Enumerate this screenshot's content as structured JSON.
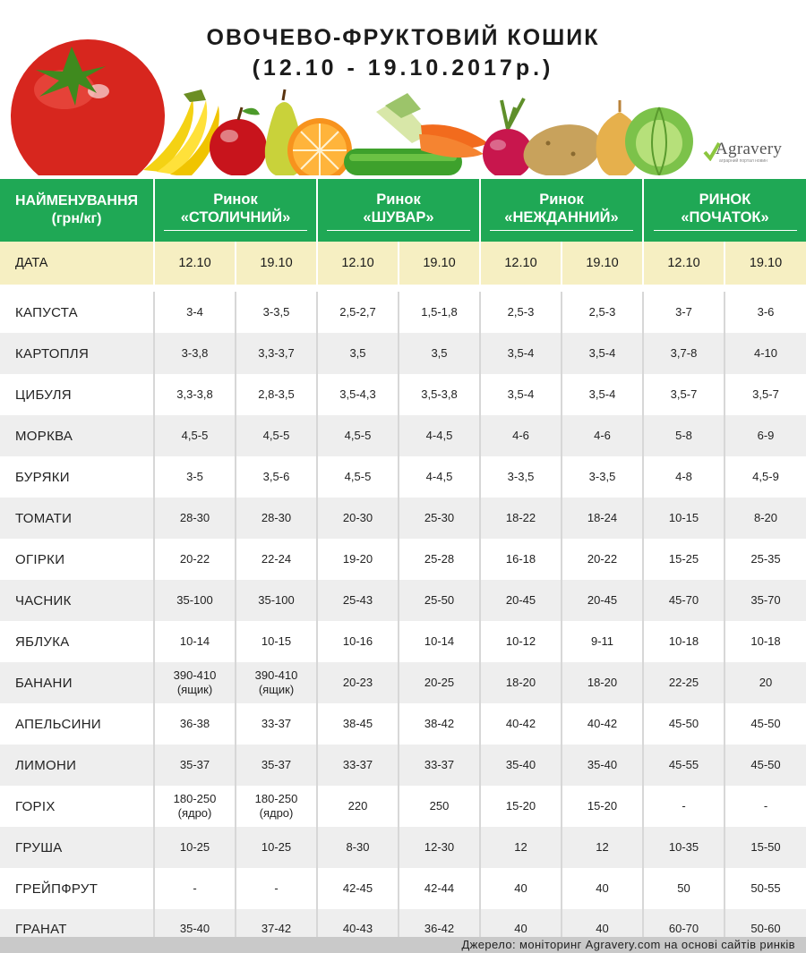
{
  "title_line1": "ОВОЧЕВО-ФРУКТОВИЙ КОШИК",
  "title_line2": "(12.10 - 19.10.2017р.)",
  "logo_text": "Agravery",
  "logo_subtitle": "аграрний портал новин",
  "colors": {
    "green": "#1fa855",
    "date_row": "#f6efc2",
    "stripe": "#eeeeee"
  },
  "header": {
    "name_line1": "НАЙМЕНУВАННЯ",
    "name_line2": "(грн/кг)",
    "markets": [
      {
        "line1": "Ринок",
        "line2": "«СТОЛИЧНИЙ»"
      },
      {
        "line1": "Ринок",
        "line2": "«ШУВАР»"
      },
      {
        "line1": "Ринок",
        "line2": "«НЕЖДАННИЙ»"
      },
      {
        "line1": "РИНОК",
        "line2": "«ПОЧАТОК»"
      }
    ]
  },
  "date_row": {
    "label": "ДАТА",
    "dates": [
      "12.10",
      "19.10",
      "12.10",
      "19.10",
      "12.10",
      "19.10",
      "12.10",
      "19.10"
    ]
  },
  "rows": [
    {
      "name": "КАПУСТА",
      "values": [
        "3-4",
        "3-3,5",
        "2,5-2,7",
        "1,5-1,8",
        "2,5-3",
        "2,5-3",
        "3-7",
        "3-6"
      ]
    },
    {
      "name": "КАРТОПЛЯ",
      "values": [
        "3-3,8",
        "3,3-3,7",
        "3,5",
        "3,5",
        "3,5-4",
        "3,5-4",
        "3,7-8",
        "4-10"
      ]
    },
    {
      "name": "ЦИБУЛЯ",
      "values": [
        "3,3-3,8",
        "2,8-3,5",
        "3,5-4,3",
        "3,5-3,8",
        "3,5-4",
        "3,5-4",
        "3,5-7",
        "3,5-7"
      ]
    },
    {
      "name": "МОРКВА",
      "values": [
        "4,5-5",
        "4,5-5",
        "4,5-5",
        "4-4,5",
        "4-6",
        "4-6",
        "5-8",
        "6-9"
      ]
    },
    {
      "name": "БУРЯКИ",
      "values": [
        "3-5",
        "3,5-6",
        "4,5-5",
        "4-4,5",
        "3-3,5",
        "3-3,5",
        "4-8",
        "4,5-9"
      ]
    },
    {
      "name": "ТОМАТИ",
      "values": [
        "28-30",
        "28-30",
        "20-30",
        "25-30",
        "18-22",
        "18-24",
        "10-15",
        "8-20"
      ]
    },
    {
      "name": "ОГІРКИ",
      "values": [
        "20-22",
        "22-24",
        "19-20",
        "25-28",
        "16-18",
        "20-22",
        "15-25",
        "25-35"
      ]
    },
    {
      "name": "ЧАСНИК",
      "values": [
        "35-100",
        "35-100",
        "25-43",
        "25-50",
        "20-45",
        "20-45",
        "45-70",
        "35-70"
      ]
    },
    {
      "name": "ЯБЛУКА",
      "values": [
        "10-14",
        "10-15",
        "10-16",
        "10-14",
        "10-12",
        "9-11",
        "10-18",
        "10-18"
      ]
    },
    {
      "name": "БАНАНИ",
      "values": [
        "390-410|(ящик)",
        "390-410|(ящик)",
        "20-23",
        "20-25",
        "18-20",
        "18-20",
        "22-25",
        "20"
      ]
    },
    {
      "name": "АПЕЛЬСИНИ",
      "values": [
        "36-38",
        "33-37",
        "38-45",
        "38-42",
        "40-42",
        "40-42",
        "45-50",
        "45-50"
      ]
    },
    {
      "name": "ЛИМОНИ",
      "values": [
        "35-37",
        "35-37",
        "33-37",
        "33-37",
        "35-40",
        "35-40",
        "45-55",
        "45-50"
      ]
    },
    {
      "name": "ГОРІХ",
      "values": [
        "180-250|(ядро)",
        "180-250|(ядро)",
        "220",
        "250",
        "15-20",
        "15-20",
        "-",
        "-"
      ]
    },
    {
      "name": "ГРУША",
      "values": [
        "10-25",
        "10-25",
        "8-30",
        "12-30",
        "12",
        "12",
        "10-35",
        "15-50"
      ]
    },
    {
      "name": "ГРЕЙПФРУТ",
      "values": [
        "-",
        "-",
        "42-45",
        "42-44",
        "40",
        "40",
        "50",
        "50-55"
      ]
    },
    {
      "name": "ГРАНАТ",
      "values": [
        "35-40",
        "37-42",
        "40-43",
        "36-42",
        "40",
        "40",
        "60-70",
        "50-60"
      ]
    }
  ],
  "footer": "Джерело: моніторинг Agravery.com на основі сайтів ринків"
}
